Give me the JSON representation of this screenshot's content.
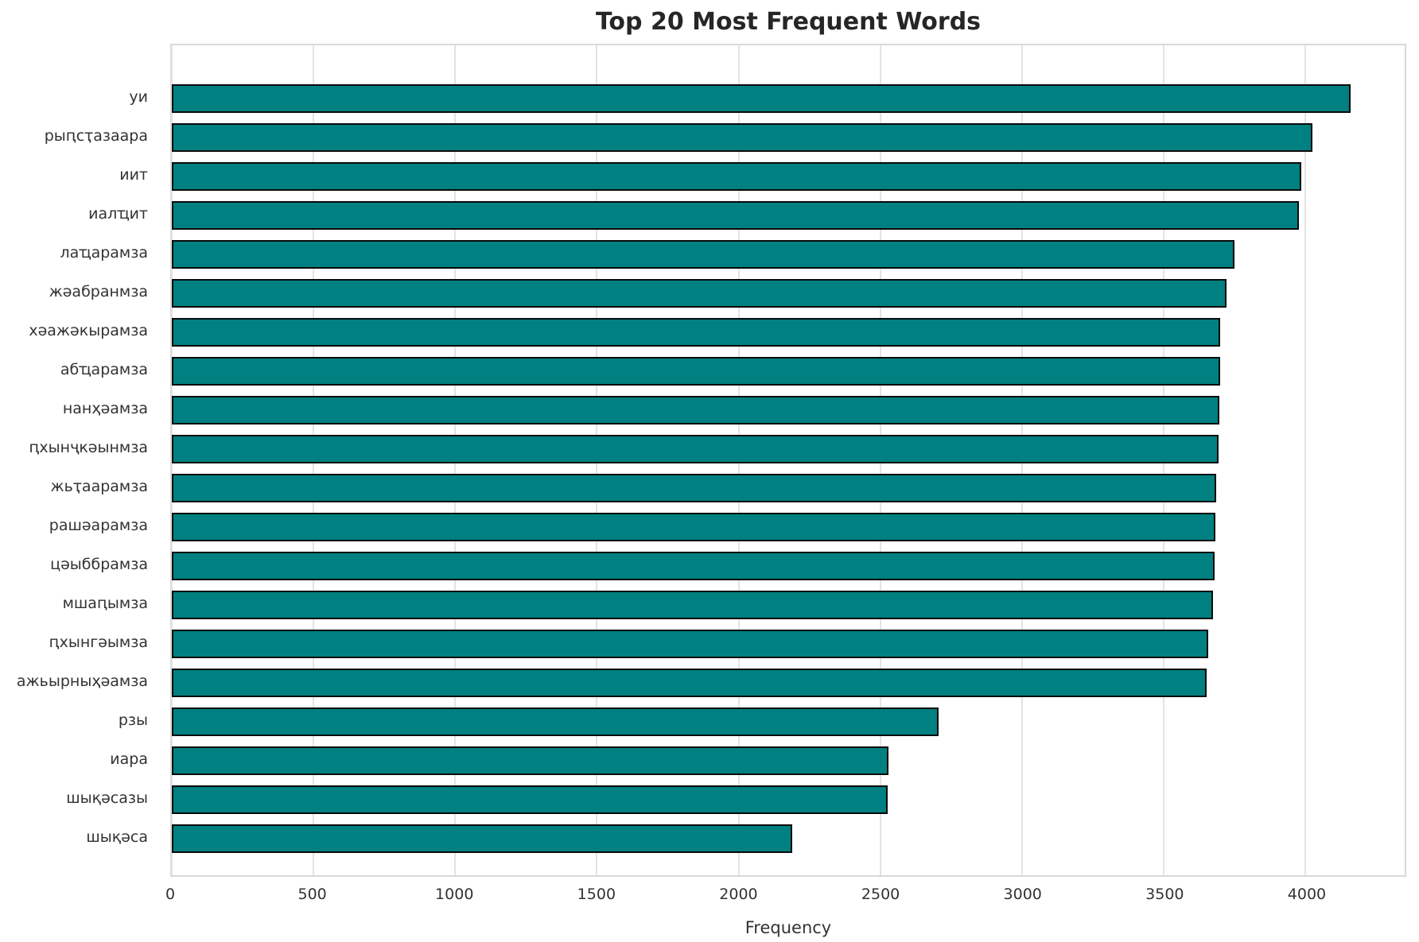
{
  "chart_data": {
    "type": "bar",
    "orientation": "horizontal",
    "title": "Top 20 Most Frequent Words",
    "xlabel": "Frequency",
    "categories": [
      "уи",
      "рыԥсҭазаара",
      "иит",
      "иалҵит",
      "лаҵарамза",
      "жәабранмза",
      "хәажәкырамза",
      "абҵарамза",
      "нанҳәамза",
      "ԥхынҷкәынмза",
      "жьҭаарамза",
      "рашәарамза",
      "цәыббрамза",
      "мшаԥымза",
      "ԥхынгәымза",
      "ажьырныҳәамза",
      "рзы",
      "иара",
      "шықәсазы",
      "шықәса"
    ],
    "values": [
      4160,
      4025,
      3985,
      3978,
      3750,
      3722,
      3700,
      3698,
      3695,
      3693,
      3686,
      3683,
      3680,
      3675,
      3658,
      3652,
      2705,
      2530,
      2527,
      2190
    ],
    "xlim": [
      0,
      4350
    ],
    "xticks": [
      0,
      500,
      1000,
      1500,
      2000,
      2500,
      3000,
      3500,
      4000
    ],
    "grid": true,
    "legend": "none",
    "bar_color": "#008080",
    "bar_edge_color": "#0a0a0a"
  }
}
